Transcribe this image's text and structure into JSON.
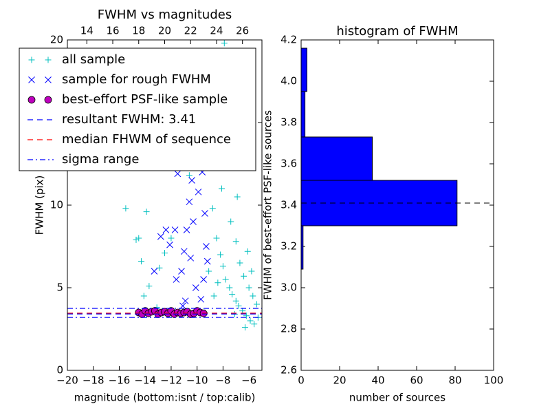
{
  "chart_data": [
    {
      "type": "scatter",
      "title": "FWHM vs magnitudes",
      "xlabel": "magnitude (bottom:isnt / top:calib)",
      "ylabel": "FWHM (pix)",
      "xlim": [
        -20,
        -5
      ],
      "xticks": [
        {
          "value": -20,
          "label": "−20"
        },
        {
          "value": -18,
          "label": "−18"
        },
        {
          "value": -16,
          "label": "−16"
        },
        {
          "value": -14,
          "label": "−14"
        },
        {
          "value": -12,
          "label": "−12"
        },
        {
          "value": -10,
          "label": "−10"
        },
        {
          "value": -8,
          "label": "−8"
        },
        {
          "value": -6,
          "label": "−6"
        }
      ],
      "x2lim": [
        12.5,
        27.5
      ],
      "x2ticks": [
        14,
        16,
        18,
        20,
        22,
        24,
        26
      ],
      "ylim": [
        0,
        20
      ],
      "yticks": [
        0,
        5,
        10,
        15,
        20
      ],
      "series": [
        {
          "name": "all sample",
          "color": "#00bfbf",
          "marker": "+",
          "x": [
            -14.5,
            -14.3,
            -14.7,
            -14.1,
            -13.7,
            -13.1,
            -12.5,
            -12,
            -12.9,
            -11.3,
            -15.5,
            -13.9,
            -10.6,
            -9.2,
            -8.8,
            -8.5,
            -8.2,
            -8,
            -7.8,
            -7.5,
            -7.3,
            -7,
            -6.8,
            -6.5,
            -6.2,
            -5.9,
            -5.6,
            -5.3,
            -8.6,
            -8.3,
            -8.9,
            -7.9,
            -7.2,
            -7.6,
            -8.1,
            -7.4,
            -7,
            -6.7,
            -6.4,
            -6,
            -5.7,
            -5.4,
            -6.1,
            -5.8,
            -6.9,
            -7.7,
            -8.7,
            -8.4,
            -9.1,
            -9.4,
            -7.1,
            -6.3
          ],
          "values": [
            8,
            6.6,
            7.9,
            4.5,
            5.1,
            3.8,
            7.1,
            8,
            6.2,
            12.3,
            9.8,
            9.6,
            11.8,
            12.3,
            9.8,
            8,
            7,
            6.3,
            5.5,
            5,
            4.6,
            4.2,
            3.9,
            3.6,
            3.3,
            3,
            2.8,
            3.2,
            13,
            15.2,
            17.6,
            19.8,
            18,
            14,
            11,
            9,
            7.8,
            6.5,
            5.7,
            5,
            4.5,
            4,
            7.2,
            6,
            10.5,
            12.5,
            4.5,
            5.3,
            6,
            3.5,
            3.4,
            2.6
          ]
        },
        {
          "name": "sample for rough FWHM",
          "color": "#0000ff",
          "marker": "x",
          "x": [
            -11.2,
            -11,
            -10.8,
            -10.6,
            -10.4,
            -10.2,
            -10,
            -9.8,
            -9.6,
            -9.4,
            -9.3,
            -9.5,
            -9.7,
            -10.1,
            -10.5,
            -10.9,
            -11.1,
            -9.9,
            -10.3,
            -9.2,
            -12.8,
            -12.1,
            -13.3,
            -11.7,
            -11.5,
            -12.4,
            -11.6,
            -10.7,
            -9.9
          ],
          "values": [
            6,
            7.2,
            8.5,
            10.2,
            11.5,
            13,
            14.5,
            15.2,
            12,
            9.5,
            7.5,
            5.5,
            4.3,
            5,
            6.8,
            4.2,
            3.9,
            10.8,
            9,
            6.6,
            8.1,
            7.6,
            6,
            8.5,
            11.9,
            8.5,
            5.5,
            12.8,
            16.2
          ]
        },
        {
          "name": "best-effort PSF-like sample",
          "color": "#bf00bf",
          "marker": "o",
          "x": [
            -14.5,
            -14.25,
            -14,
            -13.75,
            -13.5,
            -13.25,
            -13,
            -12.75,
            -12.5,
            -12.25,
            -12,
            -11.75,
            -11.5,
            -11.25,
            -11,
            -10.75,
            -10.5,
            -10.25,
            -10,
            -9.75,
            -9.5
          ],
          "values": [
            3.5,
            3.4,
            3.6,
            3.45,
            3.55,
            3.6,
            3.4,
            3.5,
            3.55,
            3.45,
            3.6,
            3.4,
            3.5,
            3.45,
            3.5,
            3.55,
            3.4,
            3.45,
            3.6,
            3.5,
            3.45
          ]
        }
      ],
      "hlines": [
        {
          "name": "resultant FWHM: 3.41",
          "color": "#0000ff",
          "style": "dashed",
          "values": [
            3.41
          ]
        },
        {
          "name": "median FHWM of sequence",
          "color": "#ff0000",
          "style": "dashed",
          "values": [
            3.46
          ]
        },
        {
          "name": "sigma range",
          "color": "#0000ff",
          "style": "dashdot",
          "values": [
            3.2,
            3.75
          ]
        }
      ],
      "legend": "upper left"
    },
    {
      "type": "histogram",
      "orientation": "horizontal",
      "title": "histogram of FWHM",
      "xlabel": "number of sources",
      "ylabel": "FWHM of best-effort PSF-like sources",
      "xlim": [
        0,
        100
      ],
      "xticks": [
        0,
        20,
        40,
        60,
        80,
        100
      ],
      "ylim": [
        2.6,
        4.2
      ],
      "yticks": [
        2.6,
        2.8,
        {
          "value": 3,
          "label": "3.0"
        },
        3.2,
        3.4,
        3.6,
        3.8,
        {
          "value": 4,
          "label": "4.0"
        },
        4.2
      ],
      "bins": [
        2.87,
        3.09,
        3.3,
        3.52,
        3.73,
        3.95,
        4.16
      ],
      "values": [
        0,
        1,
        81,
        37,
        2,
        3
      ],
      "color": "#0000ff",
      "hline": {
        "value": 3.41,
        "color": "#000000",
        "style": "dashed"
      }
    }
  ]
}
